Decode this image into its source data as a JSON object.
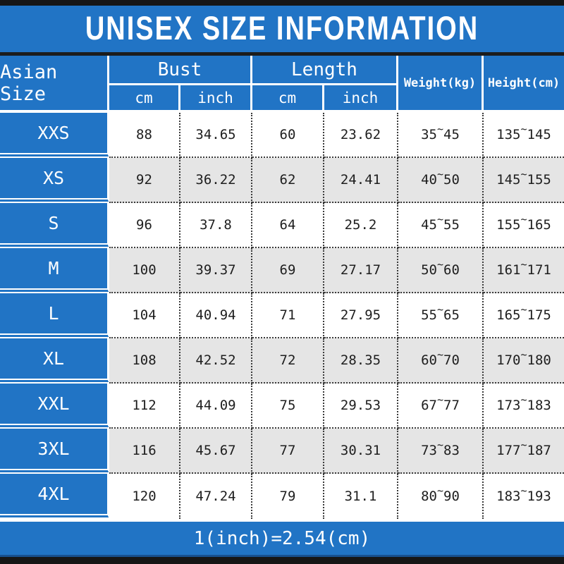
{
  "title": "UNISEX SIZE INFORMATION",
  "header": {
    "size": "Asian Size",
    "bust": "Bust",
    "length": "Length",
    "cm": "cm",
    "inch": "inch",
    "weight": "Weight(kg)",
    "height": "Height(cm)"
  },
  "footer": {
    "note": "1(inch)=2.54(cm)"
  },
  "colors": {
    "accent_blue": "#2174c5",
    "row_alt_gray": "#e5e5e5",
    "bar_black": "#161616",
    "text_dark": "#1e1e1e"
  },
  "chart_data": {
    "type": "table",
    "title": "UNISEX SIZE INFORMATION",
    "columns": [
      "Asian Size",
      "Bust cm",
      "Bust inch",
      "Length cm",
      "Length inch",
      "Weight(kg)",
      "Height(cm)"
    ],
    "range_separator": "~",
    "footer_note": "1(inch)=2.54(cm)",
    "rows": [
      {
        "size": "XXS",
        "bust_cm": "88",
        "bust_inch": "34.65",
        "length_cm": "60",
        "length_inch": "23.62",
        "weight_min": "35",
        "weight_max": "45",
        "height_min": "135",
        "height_max": "145"
      },
      {
        "size": "XS",
        "bust_cm": "92",
        "bust_inch": "36.22",
        "length_cm": "62",
        "length_inch": "24.41",
        "weight_min": "40",
        "weight_max": "50",
        "height_min": "145",
        "height_max": "155"
      },
      {
        "size": "S",
        "bust_cm": "96",
        "bust_inch": "37.8",
        "length_cm": "64",
        "length_inch": "25.2",
        "weight_min": "45",
        "weight_max": "55",
        "height_min": "155",
        "height_max": "165"
      },
      {
        "size": "M",
        "bust_cm": "100",
        "bust_inch": "39.37",
        "length_cm": "69",
        "length_inch": "27.17",
        "weight_min": "50",
        "weight_max": "60",
        "height_min": "161",
        "height_max": "171"
      },
      {
        "size": "L",
        "bust_cm": "104",
        "bust_inch": "40.94",
        "length_cm": "71",
        "length_inch": "27.95",
        "weight_min": "55",
        "weight_max": "65",
        "height_min": "165",
        "height_max": "175"
      },
      {
        "size": "XL",
        "bust_cm": "108",
        "bust_inch": "42.52",
        "length_cm": "72",
        "length_inch": "28.35",
        "weight_min": "60",
        "weight_max": "70",
        "height_min": "170",
        "height_max": "180"
      },
      {
        "size": "XXL",
        "bust_cm": "112",
        "bust_inch": "44.09",
        "length_cm": "75",
        "length_inch": "29.53",
        "weight_min": "67",
        "weight_max": "77",
        "height_min": "173",
        "height_max": "183"
      },
      {
        "size": "3XL",
        "bust_cm": "116",
        "bust_inch": "45.67",
        "length_cm": "77",
        "length_inch": "30.31",
        "weight_min": "73",
        "weight_max": "83",
        "height_min": "177",
        "height_max": "187"
      },
      {
        "size": "4XL",
        "bust_cm": "120",
        "bust_inch": "47.24",
        "length_cm": "79",
        "length_inch": "31.1",
        "weight_min": "80",
        "weight_max": "90",
        "height_min": "183",
        "height_max": "193"
      }
    ]
  }
}
